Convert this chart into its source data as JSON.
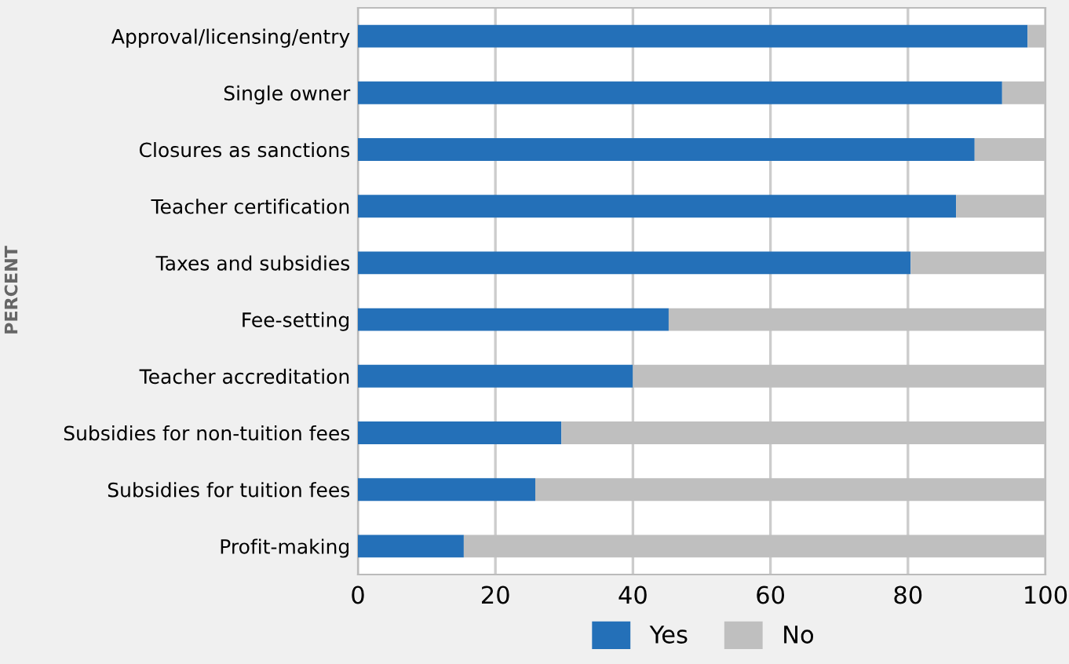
{
  "chart_data": {
    "type": "bar",
    "orientation": "horizontal",
    "stacked": true,
    "ylabel": "PERCENT",
    "categories": [
      "Approval/licensing/entry",
      "Single owner",
      "Closures as sanctions",
      "Teacher certification",
      "Taxes and subsidies",
      "Fee-setting",
      "Teacher accreditation",
      "Subsidies for non-tuition fees",
      "Subsidies for tuition fees",
      "Profit-making"
    ],
    "series": [
      {
        "name": "Yes",
        "color": "#2470b8",
        "values": [
          97.4,
          93.7,
          89.7,
          87.0,
          80.4,
          45.2,
          40.0,
          29.6,
          25.8,
          15.4
        ]
      },
      {
        "name": "No",
        "color": "#bfbfbf",
        "values": [
          2.6,
          6.3,
          10.3,
          13.0,
          19.6,
          54.8,
          60.0,
          70.4,
          74.2,
          84.6
        ]
      }
    ],
    "xlim": [
      0,
      100
    ],
    "xticks": [
      0,
      20,
      40,
      60,
      80,
      100
    ],
    "grid": "x",
    "legend": "bottom"
  }
}
